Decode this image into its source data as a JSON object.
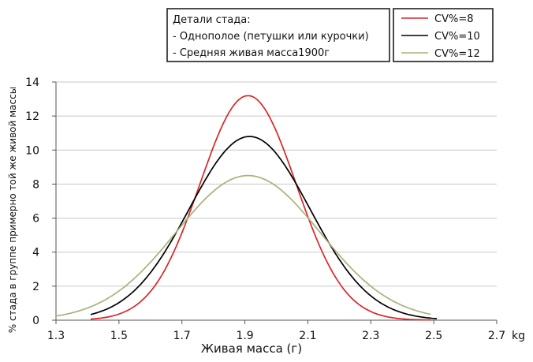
{
  "chart_data": {
    "type": "line",
    "xlabel": "Живая масса (г)",
    "x_unit": "kg",
    "ylabel": "% стада в группе примерно той же живой массы",
    "xlim": [
      1.3,
      2.7
    ],
    "ylim": [
      0,
      14
    ],
    "xticks": [
      "1.3",
      "1.5",
      "1.7",
      "1.9",
      "2.1",
      "2.3",
      "2.5",
      "2.7"
    ],
    "yticks": [
      "0",
      "2",
      "4",
      "6",
      "8",
      "10",
      "12",
      "14"
    ],
    "grid": "horizontal",
    "legend": {
      "placement": "top-right"
    },
    "info_box": {
      "title": "Детали стада:",
      "lines": [
        "- Однополое (петушки или курочки)",
        "- Средняя живая масса1900г"
      ]
    },
    "series": [
      {
        "name": "CV%=8",
        "color": "#d9262b",
        "mean": 1.91,
        "peak": 13.2,
        "x_start": 1.41,
        "x_end": 2.49
      },
      {
        "name": "CV%=10",
        "color": "#000000",
        "mean": 1.915,
        "peak": 10.8,
        "x_start": 1.41,
        "x_end": 2.51
      },
      {
        "name": "CV%=12",
        "color": "#a8b27a",
        "mean": 1.91,
        "peak": 8.5,
        "x_start": 1.3,
        "x_end": 2.49
      }
    ]
  }
}
